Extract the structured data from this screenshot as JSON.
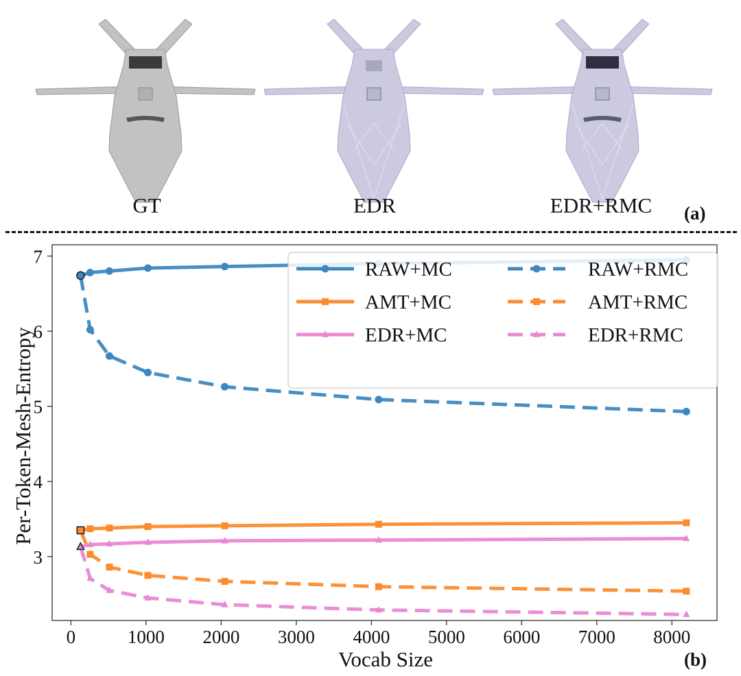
{
  "panel_a": {
    "captions": [
      "GT",
      "EDR",
      "EDR+RMC"
    ],
    "label": "(a)",
    "images": [
      {
        "name": "GT",
        "shade": "#bdbdbd"
      },
      {
        "name": "EDR",
        "shade": "#c9c8df"
      },
      {
        "name": "EDR+RMC",
        "shade": "#c9c8df"
      }
    ]
  },
  "panel_b_label": "(b)",
  "chart_data": {
    "type": "line",
    "title": "",
    "xlabel": "Vocab Size",
    "ylabel": "Per-Token-Mesh-Entropy",
    "xlim": [
      -250,
      8600
    ],
    "ylim": [
      2.15,
      7.15
    ],
    "xticks": [
      0,
      1000,
      2000,
      3000,
      4000,
      5000,
      6000,
      7000,
      8000
    ],
    "yticks": [
      3,
      4,
      5,
      6,
      7
    ],
    "grid": false,
    "legend_position": "top-right",
    "x": [
      128,
      256,
      512,
      1024,
      2048,
      4096,
      8192
    ],
    "series": [
      {
        "name": "RAW+MC",
        "color": "#3d88c0",
        "dash": "solid",
        "marker": "circle",
        "values": [
          6.74,
          6.78,
          6.8,
          6.84,
          6.86,
          6.9,
          6.95
        ]
      },
      {
        "name": "RAW+RMC",
        "color": "#3d88c0",
        "dash": "dashed",
        "marker": "circle",
        "values": [
          6.74,
          6.02,
          5.67,
          5.45,
          5.26,
          5.09,
          4.93
        ]
      },
      {
        "name": "AMT+MC",
        "color": "#fb8c2e",
        "dash": "solid",
        "marker": "square",
        "values": [
          3.35,
          3.37,
          3.38,
          3.4,
          3.41,
          3.43,
          3.45
        ]
      },
      {
        "name": "AMT+RMC",
        "color": "#fb8c2e",
        "dash": "dashed",
        "marker": "square",
        "values": [
          3.35,
          3.03,
          2.86,
          2.75,
          2.67,
          2.6,
          2.54
        ]
      },
      {
        "name": "EDR+MC",
        "color": "#e987d2",
        "dash": "solid",
        "marker": "triangle",
        "values": [
          3.13,
          3.16,
          3.17,
          3.19,
          3.21,
          3.22,
          3.24
        ]
      },
      {
        "name": "EDR+RMC",
        "color": "#e987d2",
        "dash": "dashed",
        "marker": "triangle",
        "values": [
          3.13,
          2.71,
          2.55,
          2.45,
          2.36,
          2.29,
          2.23
        ]
      }
    ],
    "legend_order": [
      "RAW+MC",
      "AMT+MC",
      "EDR+MC",
      "RAW+RMC",
      "AMT+RMC",
      "EDR+RMC"
    ]
  }
}
